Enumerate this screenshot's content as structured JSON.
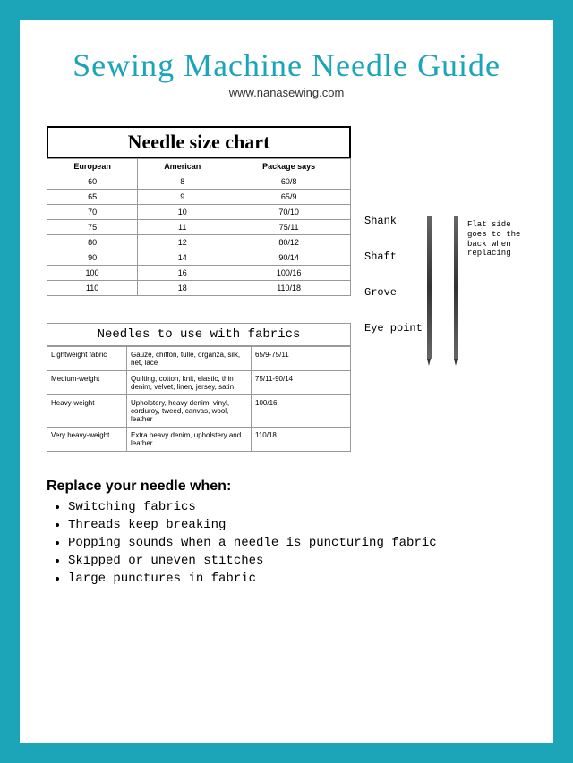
{
  "title": "Sewing Machine Needle Guide",
  "subtitle": "www.nanasewing.com",
  "sizeChart": {
    "title": "Needle size chart",
    "columns": [
      "European",
      "American",
      "Package says"
    ],
    "rows": [
      [
        "60",
        "8",
        "60/8"
      ],
      [
        "65",
        "9",
        "65/9"
      ],
      [
        "70",
        "10",
        "70/10"
      ],
      [
        "75",
        "11",
        "75/11"
      ],
      [
        "80",
        "12",
        "80/12"
      ],
      [
        "90",
        "14",
        "90/14"
      ],
      [
        "100",
        "16",
        "100/16"
      ],
      [
        "110",
        "18",
        "110/18"
      ]
    ]
  },
  "fabricTable": {
    "title": "Needles to use with fabrics",
    "rows": [
      [
        "Lightweight fabric",
        "Gauze, chiffon, tulle, organza, silk, net, lace",
        "65/9-75/11"
      ],
      [
        "Medium-weight",
        "Quilting, cotton, knit, elastic, thin denim, velvet, linen, jersey, satin",
        "75/11-90/14"
      ],
      [
        "Heavy-weight",
        "Upholstery, heavy denim, vinyl, corduroy, tweed, canvas, wool, leather",
        "100/16"
      ],
      [
        "Very heavy-weight",
        "Extra heavy denim, upholstery and leather",
        "110/18"
      ]
    ]
  },
  "diagram": {
    "labels": [
      "Shank",
      "Shaft",
      "Grove",
      "Eye point"
    ],
    "note": "Flat side goes to the back when replacing"
  },
  "replace": {
    "title": "Replace your needle when:",
    "items": [
      "Switching fabrics",
      "Threads keep breaking",
      "Popping sounds when a needle is puncturing fabric",
      "Skipped or uneven stitches",
      "large punctures in fabric"
    ]
  },
  "colors": {
    "accent": "#1ca4b8",
    "border": "#999",
    "text": "#000",
    "bg": "#fff"
  }
}
